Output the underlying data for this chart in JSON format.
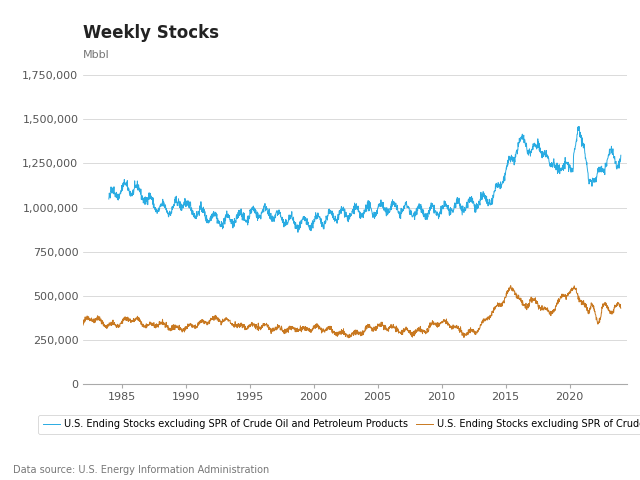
{
  "title": "Weekly Stocks",
  "ylabel_label": "Mbbl",
  "source": "Data source: U.S. Energy Information Administration",
  "legend": [
    "U.S. Ending Stocks excluding SPR of Crude Oil and Petroleum Products",
    "U.S. Ending Stocks excluding SPR of Crude Oil"
  ],
  "line_colors": [
    "#29ABE2",
    "#C87820"
  ],
  "background_color": "#FFFFFF",
  "plot_bg_color": "#FFFFFF",
  "grid_color": "#CCCCCC",
  "ylim": [
    0,
    1850000
  ],
  "yticks": [
    0,
    250000,
    500000,
    750000,
    1000000,
    1250000,
    1500000,
    1750000
  ],
  "ytick_labels": [
    "0",
    "250,000",
    "500,000",
    "750,000",
    "1,000,000",
    "1,250,000",
    "1,500,000",
    "1,750,000"
  ],
  "xlim": [
    1982.0,
    2024.5
  ],
  "xtick_years": [
    1985,
    1990,
    1995,
    2000,
    2005,
    2010,
    2015,
    2020
  ],
  "title_fontsize": 12,
  "tick_fontsize": 8,
  "legend_fontsize": 7,
  "source_fontsize": 7,
  "ylabel_fontsize": 8
}
